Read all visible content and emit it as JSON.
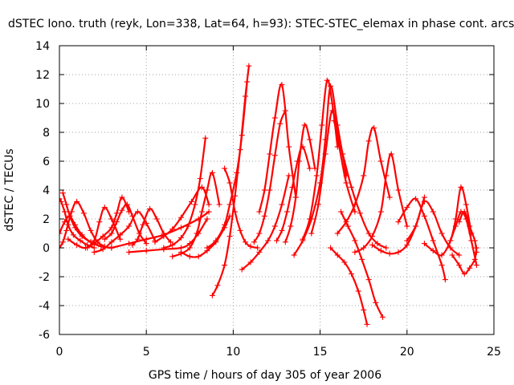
{
  "chart_data": {
    "type": "scatter",
    "title": "dSTEC Iono. truth (reyk, Lon=338, Lat=64, h=93): STEC-STEC_elemax in phase cont. arcs",
    "xlabel": "GPS time / hours of day 305 of year 2006",
    "ylabel": "dSTEC  / TECUs",
    "xlim": [
      0,
      25
    ],
    "ylim": [
      -6,
      14
    ],
    "xticks": [
      0,
      5,
      10,
      15,
      20,
      25
    ],
    "yticks": [
      -6,
      -4,
      -2,
      0,
      2,
      4,
      6,
      8,
      10,
      12,
      14
    ],
    "grid": true,
    "legend": "none",
    "marker": "plus",
    "color": "#ff0000",
    "series": [
      {
        "x": [
          0.0,
          0.1,
          0.3,
          0.5,
          0.8,
          1.2,
          1.6,
          2.0
        ],
        "y": [
          3.4,
          3.2,
          2.5,
          1.6,
          0.9,
          0.5,
          0.2,
          0.0
        ]
      },
      {
        "x": [
          0.0,
          0.2,
          0.4,
          0.7,
          1.0,
          1.4,
          1.8,
          2.2,
          2.6
        ],
        "y": [
          0.0,
          0.4,
          1.2,
          2.5,
          3.2,
          2.4,
          1.2,
          0.4,
          0.1
        ]
      },
      {
        "x": [
          0.0,
          0.3,
          0.6,
          0.9,
          1.3,
          1.8,
          2.4,
          3.0
        ],
        "y": [
          1.0,
          1.8,
          2.2,
          1.6,
          0.9,
          0.4,
          0.1,
          0.0
        ]
      },
      {
        "x": [
          0.2,
          0.4,
          0.6,
          0.9,
          1.3,
          1.8,
          2.4,
          3.0
        ],
        "y": [
          3.8,
          3.0,
          2.2,
          1.4,
          0.8,
          0.4,
          0.1,
          0.0
        ]
      },
      {
        "x": [
          0.5,
          1.0,
          1.5,
          2.0,
          2.3,
          2.6,
          3.0,
          3.5
        ],
        "y": [
          0.6,
          0.2,
          0.0,
          0.5,
          1.8,
          2.8,
          2.0,
          0.6
        ]
      },
      {
        "x": [
          1.6,
          2.0,
          2.5,
          3.0,
          3.3,
          3.6,
          4.0
        ],
        "y": [
          0.0,
          0.3,
          0.8,
          1.4,
          2.4,
          3.5,
          2.5
        ]
      },
      {
        "x": [
          2.6,
          3.0,
          3.3,
          3.6,
          3.9,
          4.2,
          4.6,
          5.0
        ],
        "y": [
          0.6,
          1.0,
          1.8,
          2.6,
          3.0,
          2.2,
          1.0,
          0.3
        ]
      },
      {
        "x": [
          2.0,
          2.5,
          3.0,
          3.5,
          4.0,
          4.5,
          5.0,
          5.5
        ],
        "y": [
          -0.3,
          -0.1,
          0.4,
          0.9,
          1.5,
          2.5,
          1.7,
          0.5
        ]
      },
      {
        "x": [
          4.2,
          4.5,
          4.8,
          5.2,
          5.6,
          6.0,
          6.4
        ],
        "y": [
          0.2,
          0.6,
          1.6,
          2.7,
          2.0,
          1.0,
          0.4
        ]
      },
      {
        "x": [
          3.0,
          4.0,
          5.0,
          6.0,
          7.0,
          8.0,
          8.6
        ],
        "y": [
          0.0,
          0.3,
          0.6,
          0.9,
          1.4,
          2.0,
          2.5
        ]
      },
      {
        "x": [
          4.0,
          5.0,
          6.0,
          7.0,
          7.5,
          8.0,
          8.5
        ],
        "y": [
          -0.3,
          -0.2,
          -0.1,
          0.0,
          0.3,
          1.0,
          2.0
        ]
      },
      {
        "x": [
          5.5,
          6.0,
          6.5,
          7.0,
          7.6,
          8.2,
          8.6
        ],
        "y": [
          0.4,
          0.8,
          1.3,
          2.1,
          3.2,
          4.2,
          3.0
        ]
      },
      {
        "x": [
          6.0,
          6.5,
          7.0,
          7.4,
          7.8,
          8.1,
          8.4
        ],
        "y": [
          0.0,
          0.2,
          0.7,
          1.5,
          3.0,
          4.8,
          7.6
        ]
      },
      {
        "x": [
          6.5,
          7.0,
          7.5,
          7.9,
          8.2,
          8.5,
          8.8,
          9.2
        ],
        "y": [
          -0.6,
          -0.4,
          0.0,
          1.0,
          2.5,
          4.0,
          5.2,
          3.0
        ]
      },
      {
        "x": [
          7.0,
          7.5,
          8.0,
          8.5,
          9.0,
          9.5,
          9.8
        ],
        "y": [
          -0.3,
          -0.6,
          -0.6,
          -0.2,
          0.4,
          1.4,
          2.2
        ]
      },
      {
        "x": [
          8.8,
          9.1,
          9.5,
          9.8,
          10.1,
          10.4,
          10.7,
          10.9
        ],
        "y": [
          -3.3,
          -2.6,
          -1.2,
          0.8,
          3.6,
          6.8,
          10.5,
          12.6
        ]
      },
      {
        "x": [
          8.5,
          9.0,
          9.5,
          9.8,
          10.2,
          10.5,
          10.8
        ],
        "y": [
          0.0,
          0.5,
          1.6,
          3.0,
          5.2,
          7.8,
          11.5
        ]
      },
      {
        "x": [
          9.5,
          9.8,
          10.1,
          10.4,
          10.7,
          11.0,
          11.4
        ],
        "y": [
          5.5,
          4.5,
          2.5,
          1.2,
          0.4,
          0.1,
          0.0
        ]
      },
      {
        "x": [
          10.5,
          11.0,
          11.5,
          12.0,
          12.4,
          12.8,
          13.2
        ],
        "y": [
          -1.5,
          -1.0,
          -0.3,
          0.5,
          1.5,
          3.0,
          5.0
        ]
      },
      {
        "x": [
          11.2,
          11.5,
          11.8,
          12.1,
          12.4,
          12.7,
          13.0
        ],
        "y": [
          0.4,
          1.0,
          2.2,
          4.0,
          6.4,
          8.6,
          9.5
        ]
      },
      {
        "x": [
          11.5,
          11.8,
          12.1,
          12.4,
          12.8,
          13.2,
          13.6
        ],
        "y": [
          2.5,
          4.0,
          6.5,
          9.0,
          11.3,
          7.0,
          3.5
        ]
      },
      {
        "x": [
          12.5,
          12.8,
          13.1,
          13.4,
          13.7,
          14.0,
          14.4
        ],
        "y": [
          0.5,
          1.2,
          2.5,
          4.2,
          6.0,
          7.0,
          5.5
        ]
      },
      {
        "x": [
          13.0,
          13.3,
          13.6,
          13.8,
          14.1,
          14.4,
          14.7
        ],
        "y": [
          0.4,
          1.5,
          3.5,
          6.0,
          8.5,
          7.5,
          5.5
        ]
      },
      {
        "x": [
          13.5,
          14.0,
          14.5,
          15.0,
          15.3,
          15.6,
          16.0,
          16.5
        ],
        "y": [
          -0.5,
          0.5,
          2.0,
          4.5,
          7.5,
          11.2,
          8.5,
          5.0
        ]
      },
      {
        "x": [
          14.0,
          14.4,
          14.8,
          15.1,
          15.4,
          15.7,
          16.0
        ],
        "y": [
          0.6,
          2.0,
          5.0,
          8.5,
          11.6,
          10.0,
          7.0
        ]
      },
      {
        "x": [
          14.5,
          14.9,
          15.3,
          15.7,
          16.1,
          16.5,
          17.0
        ],
        "y": [
          1.0,
          3.0,
          6.5,
          9.5,
          7.0,
          4.5,
          2.5
        ]
      },
      {
        "x": [
          15.6,
          16.0,
          16.4,
          16.8,
          17.2,
          17.5,
          17.7
        ],
        "y": [
          0.0,
          -0.5,
          -1.0,
          -1.8,
          -3.0,
          -4.3,
          -5.3
        ]
      },
      {
        "x": [
          16.2,
          16.6,
          17.0,
          17.4,
          17.8,
          18.2,
          18.6
        ],
        "y": [
          2.5,
          1.5,
          0.5,
          -0.8,
          -2.2,
          -3.8,
          -4.8
        ]
      },
      {
        "x": [
          16.0,
          16.5,
          17.0,
          17.5,
          17.8,
          18.1,
          18.5,
          19.0
        ],
        "y": [
          1.0,
          1.8,
          3.0,
          5.0,
          7.4,
          8.3,
          6.0,
          3.5
        ]
      },
      {
        "x": [
          15.8,
          16.3,
          16.8,
          17.3,
          17.8,
          18.3,
          18.8
        ],
        "y": [
          8.8,
          6.5,
          4.2,
          2.4,
          1.0,
          0.3,
          0.0
        ]
      },
      {
        "x": [
          17.0,
          17.5,
          18.0,
          18.5,
          18.8,
          19.1,
          19.5,
          20.0
        ],
        "y": [
          -0.3,
          0.0,
          0.8,
          2.5,
          5.0,
          6.5,
          4.0,
          1.5
        ]
      },
      {
        "x": [
          18.0,
          18.5,
          19.0,
          19.5,
          20.0,
          20.5,
          21.0
        ],
        "y": [
          0.2,
          -0.2,
          -0.4,
          -0.3,
          0.2,
          1.5,
          3.5
        ]
      },
      {
        "x": [
          19.5,
          20.0,
          20.5,
          21.0,
          21.5,
          22.0,
          22.2
        ],
        "y": [
          1.8,
          2.8,
          3.4,
          2.2,
          0.5,
          -1.2,
          -2.2
        ]
      },
      {
        "x": [
          20.0,
          20.5,
          21.0,
          21.5,
          22.0,
          22.5,
          23.0
        ],
        "y": [
          0.5,
          1.5,
          3.2,
          2.5,
          1.0,
          0.0,
          -0.5
        ]
      },
      {
        "x": [
          21.0,
          21.5,
          22.0,
          22.5,
          22.8,
          23.1,
          23.4,
          23.7
        ],
        "y": [
          0.3,
          -0.2,
          -0.5,
          0.5,
          2.0,
          4.2,
          3.0,
          1.0
        ]
      },
      {
        "x": [
          22.5,
          22.8,
          23.1,
          23.4,
          23.7,
          24.0
        ],
        "y": [
          0.5,
          1.5,
          2.5,
          2.0,
          0.5,
          -1.2
        ]
      },
      {
        "x": [
          22.6,
          23.0,
          23.3,
          23.6,
          23.9,
          24.0
        ],
        "y": [
          -0.5,
          -1.2,
          -1.8,
          -1.4,
          -0.8,
          0.0
        ]
      },
      {
        "x": [
          23.0,
          23.3,
          23.6,
          23.9,
          24.0
        ],
        "y": [
          1.8,
          2.5,
          1.5,
          0.5,
          -0.3
        ]
      }
    ]
  }
}
